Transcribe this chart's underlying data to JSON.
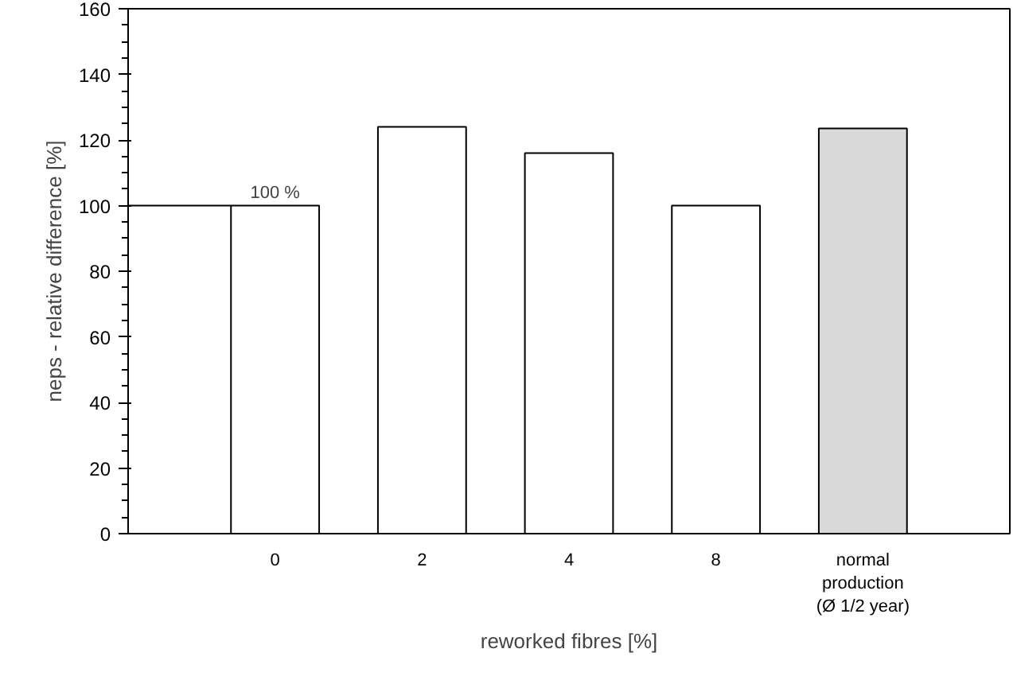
{
  "chart_data": {
    "type": "bar",
    "xlabel": "reworked fibres [%]",
    "ylabel": "neps - relative difference [%]",
    "categories": [
      "0",
      "2",
      "4",
      "8",
      "normal\nproduction\n(Ø 1/2 year)"
    ],
    "values": [
      100,
      124,
      116,
      100,
      123.5
    ],
    "colors": [
      "#ffffff",
      "#ffffff",
      "#ffffff",
      "#ffffff",
      "#d9d9d9"
    ],
    "ylim": [
      0,
      160
    ],
    "yticks": [
      0,
      20,
      40,
      60,
      80,
      100,
      120,
      140,
      160
    ],
    "grid": false,
    "ref_lines": [
      {
        "axis": "y",
        "value": 100,
        "color": "#000000"
      }
    ],
    "annotations": [
      {
        "text": "100 %",
        "x": "0",
        "y": 100
      }
    ]
  }
}
